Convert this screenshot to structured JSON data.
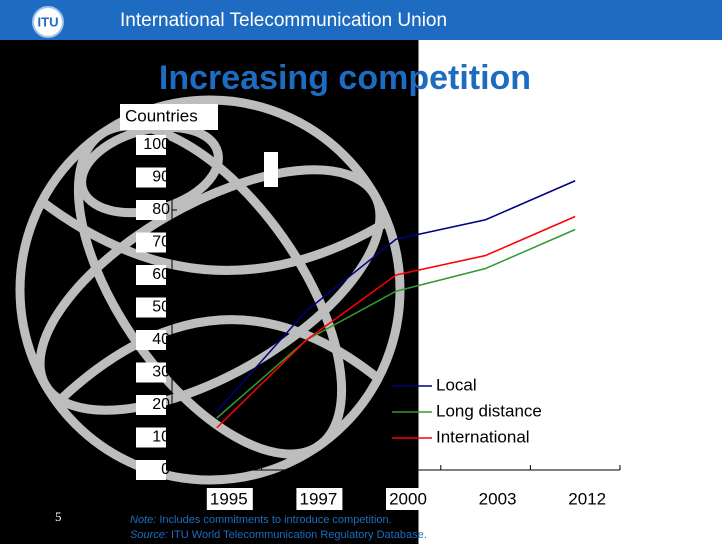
{
  "header": "International Telecommunication Union",
  "logo": "ITU",
  "slide_number": "5",
  "note_label": "Note:",
  "note_text": "Includes commitments to introduce competition.",
  "source_label": "Source:",
  "source_text": "ITU World Telecommunication Regulatory Database.",
  "chart_data": {
    "type": "line",
    "title": "Increasing competition",
    "y_label": "Countries",
    "categories": [
      "1995",
      "1997",
      "2000",
      "2003",
      "2012"
    ],
    "series": [
      {
        "name": "Local",
        "color": "#000080",
        "values": [
          18,
          49,
          71,
          77,
          89
        ]
      },
      {
        "name": "Long distance",
        "color": "#339933",
        "values": [
          16,
          40,
          55,
          62,
          74
        ]
      },
      {
        "name": "International",
        "color": "#ff0000",
        "values": [
          13,
          40,
          60,
          66,
          78
        ]
      }
    ],
    "ylim": [
      0,
      100
    ],
    "yticks": [
      0,
      10,
      20,
      30,
      40,
      50,
      60,
      70,
      80,
      90,
      100
    ]
  }
}
